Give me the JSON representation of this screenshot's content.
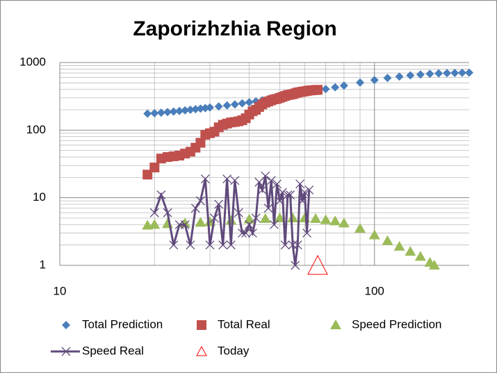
{
  "chart_data": {
    "type": "scatter",
    "title": "Zaporizhzhia Region",
    "xscale": "log",
    "yscale": "log",
    "grid": true,
    "minor_grid": true,
    "xlim": [
      10,
      200
    ],
    "ylim": [
      1,
      1000
    ],
    "xticks": [
      10,
      100
    ],
    "yticks": [
      1,
      10,
      100,
      1000
    ],
    "legend": "bottom",
    "series": [
      {
        "name": "Total Prediction",
        "color": "#4a7ebb",
        "marker": "diamond",
        "line": false,
        "x": [
          19,
          20,
          21,
          22,
          23,
          24,
          25,
          26,
          27,
          28,
          29,
          30,
          32,
          34,
          36,
          38,
          40,
          42,
          44,
          46,
          48,
          50,
          53,
          56,
          60,
          65,
          70,
          75,
          80,
          90,
          100,
          110,
          120,
          130,
          140,
          150,
          160,
          170,
          180,
          190,
          200
        ],
        "values": [
          175,
          178,
          181,
          185,
          188,
          192,
          196,
          200,
          204,
          208,
          212,
          216,
          224,
          232,
          240,
          249,
          258,
          267,
          276,
          286,
          296,
          306,
          320,
          335,
          355,
          380,
          405,
          430,
          455,
          505,
          550,
          590,
          620,
          645,
          665,
          680,
          690,
          697,
          702,
          705,
          707
        ]
      },
      {
        "name": "Total Real",
        "color": "#c0504d",
        "marker": "square",
        "line": false,
        "x": [
          19,
          20,
          21,
          22,
          23,
          24,
          25,
          26,
          27,
          28,
          29,
          30,
          31,
          32,
          33,
          34,
          35,
          36,
          37,
          38,
          39,
          40,
          41,
          42,
          43,
          44,
          45,
          46,
          47,
          48,
          49,
          50,
          51,
          52,
          53,
          54,
          55,
          56,
          57,
          58,
          59,
          60,
          61,
          62,
          63,
          64,
          65,
          66
        ],
        "values": [
          22,
          28,
          38,
          40,
          41,
          42,
          45,
          48,
          55,
          65,
          85,
          90,
          95,
          110,
          120,
          125,
          130,
          132,
          135,
          140,
          150,
          170,
          190,
          200,
          220,
          240,
          255,
          265,
          275,
          285,
          290,
          300,
          310,
          320,
          330,
          335,
          340,
          350,
          360,
          365,
          370,
          375,
          380,
          385,
          388,
          390,
          392,
          395
        ]
      },
      {
        "name": "Speed Prediction",
        "color": "#9bbb59",
        "marker": "triangle",
        "line": false,
        "x": [
          19,
          20,
          22,
          25,
          28,
          30,
          35,
          40,
          45,
          50,
          55,
          60,
          65,
          70,
          75,
          80,
          90,
          100,
          110,
          120,
          130,
          140,
          150,
          155
        ],
        "values": [
          3.9,
          4,
          4.1,
          4.2,
          4.3,
          4.4,
          4.6,
          4.8,
          4.9,
          5,
          5,
          5,
          4.9,
          4.7,
          4.5,
          4.2,
          3.5,
          2.8,
          2.3,
          1.9,
          1.6,
          1.35,
          1.1,
          1.0
        ]
      },
      {
        "name": "Speed Real",
        "color": "#604a7b",
        "marker": "x",
        "line": true,
        "x": [
          20,
          21,
          22,
          23,
          24,
          25,
          26,
          27,
          28,
          29,
          30,
          31,
          32,
          33,
          34,
          35,
          36,
          37,
          38,
          39,
          40,
          41,
          42,
          43,
          44,
          45,
          46,
          47,
          48,
          49,
          50,
          51,
          52,
          53,
          54,
          55,
          56,
          57,
          58,
          59,
          60,
          61,
          62
        ],
        "values": [
          6,
          11,
          6,
          2,
          4,
          4,
          2,
          7,
          9,
          19,
          2,
          5,
          8,
          2,
          19,
          2,
          18,
          6,
          3,
          3,
          4,
          3,
          5,
          17,
          13,
          21,
          7,
          18,
          4,
          16,
          9,
          12,
          2,
          11,
          11,
          2,
          1,
          2,
          16,
          9,
          12,
          3,
          13
        ]
      },
      {
        "name": "Today",
        "color": "#ff0000",
        "marker": "hollow-triangle",
        "line": false,
        "x": [
          66
        ],
        "values": [
          1
        ]
      }
    ]
  }
}
